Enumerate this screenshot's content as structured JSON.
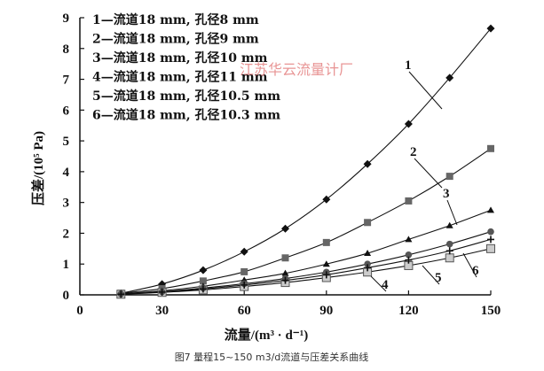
{
  "chart_data": {
    "type": "line",
    "xlabel": "流量/(m³ · d⁻¹)",
    "ylabel": "压差/(10⁵ Pa)",
    "xlim": [
      0,
      150
    ],
    "ylim": [
      0,
      9
    ],
    "xticks": [
      0,
      30,
      60,
      90,
      120,
      150
    ],
    "yticks": [
      0,
      1,
      2,
      3,
      4,
      5,
      6,
      7,
      8,
      9
    ],
    "watermark": "江苏华云流量计厂",
    "caption": "图7 量程15~150 m3/d流道与压差关系曲线",
    "series": [
      {
        "id": "1",
        "name": "流道18 mm, 孔径8 mm",
        "marker": "diamond",
        "label": "1",
        "x": [
          15,
          30,
          45,
          60,
          75,
          90,
          105,
          120,
          135,
          150
        ],
        "values": [
          0.05,
          0.35,
          0.8,
          1.4,
          2.15,
          3.1,
          4.25,
          5.55,
          7.05,
          8.65
        ]
      },
      {
        "id": "2",
        "name": "流道18 mm, 孔径9 mm",
        "marker": "square",
        "label": "2",
        "x": [
          15,
          30,
          45,
          60,
          75,
          90,
          105,
          120,
          135,
          150
        ],
        "values": [
          0.05,
          0.2,
          0.45,
          0.75,
          1.2,
          1.7,
          2.35,
          3.05,
          3.85,
          4.75
        ]
      },
      {
        "id": "3",
        "name": "流道18 mm, 孔径10 mm",
        "marker": "triangle",
        "label": "3",
        "x": [
          15,
          30,
          45,
          60,
          75,
          90,
          105,
          120,
          135,
          150
        ],
        "values": [
          0.03,
          0.13,
          0.28,
          0.48,
          0.7,
          1.0,
          1.35,
          1.8,
          2.25,
          2.75
        ]
      },
      {
        "id": "4",
        "name": "流道18 mm, 孔径11 mm",
        "marker": "open-square",
        "label": "4",
        "x": [
          15,
          30,
          45,
          60,
          75,
          90,
          105,
          120,
          135,
          150
        ],
        "values": [
          0.02,
          0.08,
          0.16,
          0.27,
          0.4,
          0.56,
          0.74,
          0.95,
          1.2,
          1.5
        ]
      },
      {
        "id": "5",
        "name": "流道18 mm, 孔径10.5 mm",
        "marker": "circle",
        "label": "5",
        "x": [
          15,
          30,
          45,
          60,
          75,
          90,
          105,
          120,
          135,
          150
        ],
        "values": [
          0.03,
          0.1,
          0.22,
          0.36,
          0.53,
          0.74,
          1.0,
          1.3,
          1.65,
          2.05
        ]
      },
      {
        "id": "6",
        "name": "流道18 mm, 孔径10.3 mm",
        "marker": "cross",
        "label": "6",
        "x": [
          15,
          30,
          45,
          60,
          75,
          90,
          105,
          120,
          135,
          150
        ],
        "values": [
          0.02,
          0.09,
          0.19,
          0.32,
          0.47,
          0.65,
          0.88,
          1.13,
          1.43,
          1.8
        ]
      }
    ]
  }
}
